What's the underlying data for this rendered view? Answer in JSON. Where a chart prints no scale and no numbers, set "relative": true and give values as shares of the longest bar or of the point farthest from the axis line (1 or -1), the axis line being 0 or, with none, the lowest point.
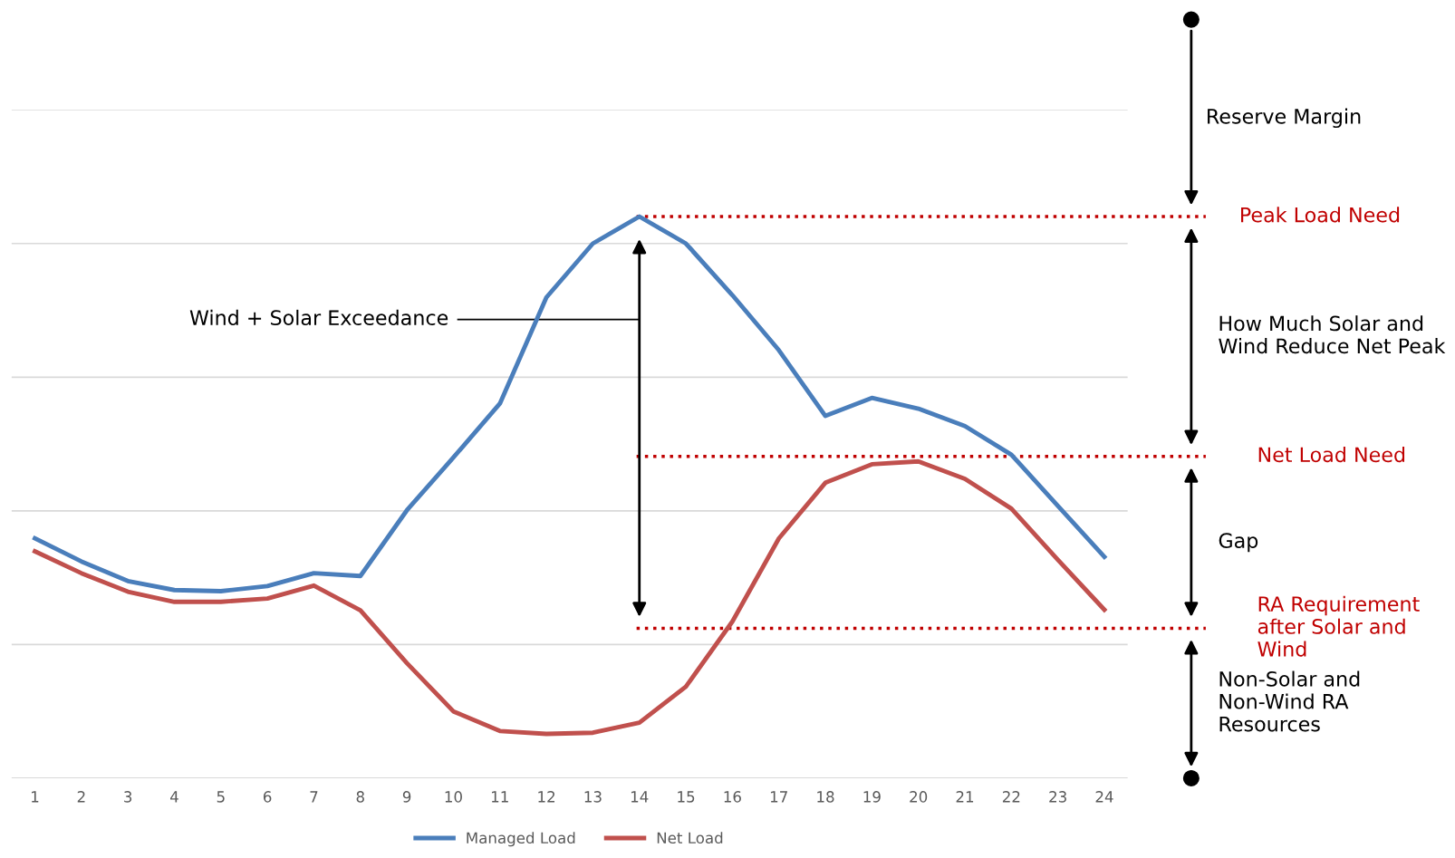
{
  "chart_data": {
    "type": "line",
    "relative": true,
    "categories": [
      "1",
      "2",
      "3",
      "4",
      "5",
      "6",
      "7",
      "8",
      "9",
      "10",
      "11",
      "12",
      "13",
      "14",
      "15",
      "16",
      "17",
      "18",
      "19",
      "20",
      "21",
      "22",
      "23",
      "24"
    ],
    "series": [
      {
        "name": "Managed Load",
        "color": "#4a7ebb",
        "values": [
          0.427,
          0.386,
          0.351,
          0.335,
          0.333,
          0.342,
          0.365,
          0.36,
          0.477,
          0.571,
          0.667,
          0.856,
          0.952,
          1.0,
          0.952,
          0.86,
          0.762,
          0.645,
          0.677,
          0.658,
          0.627,
          0.576,
          0.485,
          0.394
        ]
      },
      {
        "name": "Net Load",
        "color": "#c0504d",
        "values": [
          0.404,
          0.365,
          0.332,
          0.314,
          0.314,
          0.32,
          0.343,
          0.299,
          0.205,
          0.119,
          0.084,
          0.079,
          0.081,
          0.099,
          0.163,
          0.279,
          0.427,
          0.526,
          0.559,
          0.564,
          0.533,
          0.48,
          0.389,
          0.3
        ]
      }
    ],
    "ref_lines": [
      {
        "axis": "y",
        "value": 1.0,
        "label": "Peak Load Need",
        "color": "#c00000",
        "line_style": "dotted"
      },
      {
        "axis": "y",
        "value": 0.573,
        "label": "Net Load Need",
        "color": "#c00000",
        "line_style": "dotted"
      },
      {
        "axis": "y",
        "value": 0.267,
        "label": "RA Requirement after Solar and Wind",
        "color": "#c00000",
        "line_style": "dotted"
      }
    ],
    "annotations": [
      "Wind + Solar Exceedance",
      "Reserve Margin",
      "How Much Solar and Wind Reduce Net Peak",
      "Gap",
      "Non-Solar and Non-Wind RA Resources"
    ],
    "grid": "y",
    "legend": "bottom",
    "marker": "none",
    "line_style": "solid"
  }
}
